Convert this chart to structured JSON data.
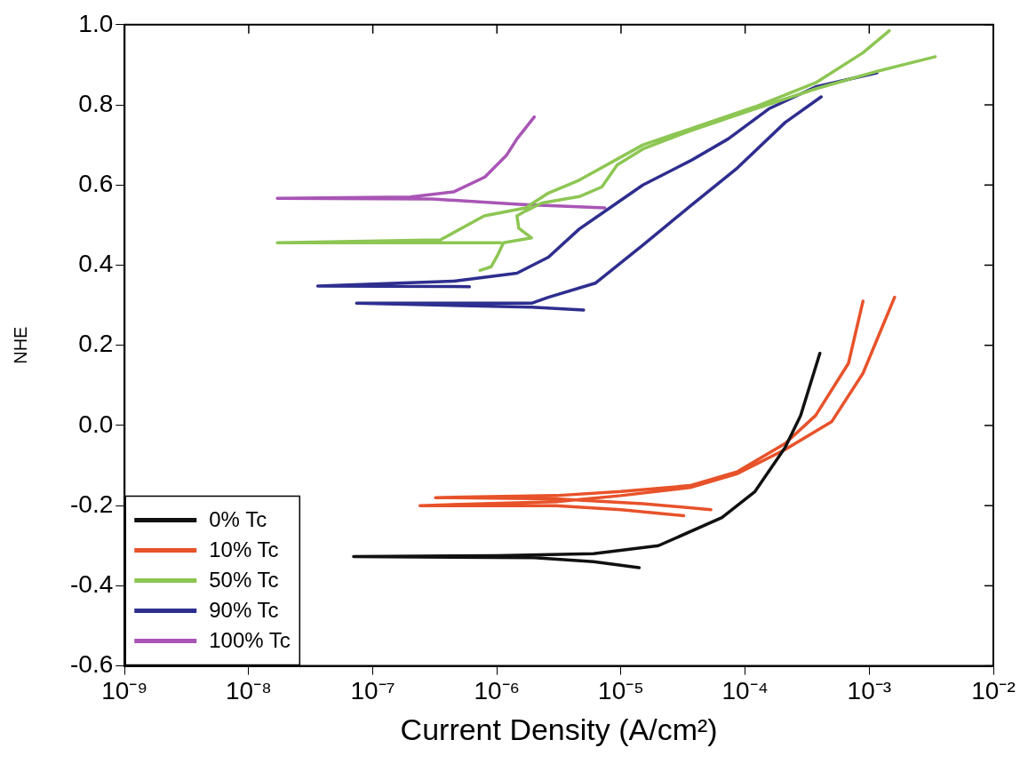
{
  "chart_data": {
    "type": "line",
    "xlabel": "Current Density (A/cm²)",
    "ylabel": "NHE",
    "log": "x",
    "xlim": [
      1e-09,
      0.01
    ],
    "ylim": [
      -0.6,
      1.0
    ],
    "xticks": [
      {
        "value": 1e-09,
        "label": "10⁻⁹"
      },
      {
        "value": 1e-08,
        "label": "10⁻⁸"
      },
      {
        "value": 1e-07,
        "label": "10⁻⁷"
      },
      {
        "value": 1e-06,
        "label": "10⁻⁶"
      },
      {
        "value": 1e-05,
        "label": "10⁻⁵"
      },
      {
        "value": 0.0001,
        "label": "10⁻⁴"
      },
      {
        "value": 0.001,
        "label": "10⁻³"
      },
      {
        "value": 0.01,
        "label": "10⁻²"
      }
    ],
    "yticks": [
      {
        "value": -0.6,
        "label": "-0.6"
      },
      {
        "value": -0.4,
        "label": "-0.4"
      },
      {
        "value": -0.2,
        "label": "-0.2"
      },
      {
        "value": 0,
        "label": "0.0"
      },
      {
        "value": 0.2,
        "label": "0.2"
      },
      {
        "value": 0.4,
        "label": "0.4"
      },
      {
        "value": 0.6,
        "label": "0.6"
      },
      {
        "value": 0.8,
        "label": "0.8"
      },
      {
        "value": 1.0,
        "label": "1.0"
      }
    ],
    "grid": false,
    "legend": "bottom left",
    "marker": "none",
    "line_style": "solid",
    "series": [
      {
        "name": "0% Tc",
        "color": "#111111",
        "x": [
          1.4e-05,
          6e-06,
          2e-06,
          7e-08,
          1e-06,
          6e-06,
          2e-05,
          6.5e-05,
          0.00012,
          0.00021,
          0.00028,
          0.0004
        ],
        "values": [
          -0.355,
          -0.34,
          -0.33,
          -0.327,
          -0.325,
          -0.32,
          -0.3,
          -0.23,
          -0.165,
          -0.055,
          0.025,
          0.18
        ]
      },
      {
        "name": "10% Tc",
        "color": "#e8522a",
        "x": [
          3.2e-05,
          1e-05,
          3e-06,
          2.4e-07,
          3e-06,
          1e-05,
          3.6e-05,
          8.7e-05,
          0.00021,
          0.0005,
          0.00089,
          0.0016,
          null,
          5.3e-05,
          1.5e-05,
          3e-06,
          3.2e-07,
          3e-06,
          1e-05,
          3.6e-05,
          8.7e-05,
          0.00021,
          0.00037,
          0.00068,
          0.00089
        ],
        "values": [
          -0.225,
          -0.21,
          -0.2,
          -0.2,
          -0.19,
          -0.175,
          -0.155,
          -0.12,
          -0.06,
          0.01,
          0.13,
          0.32,
          null,
          -0.21,
          -0.195,
          -0.183,
          -0.18,
          -0.175,
          -0.165,
          -0.15,
          -0.115,
          -0.045,
          0.025,
          0.155,
          0.31
        ]
      },
      {
        "name": "50% Tc",
        "color": "#8dc653",
        "x": [
          1.07e-06,
          1.7e-08,
          3.5e-07,
          7.9e-07,
          1.7e-06,
          2.6e-06,
          4.6e-06,
          1.5e-05,
          3.6e-05,
          0.00012,
          0.00037,
          0.00089,
          0.00145,
          null,
          7.3e-07,
          9e-07,
          1.02e-06,
          1.13e-06,
          1.9e-06,
          1.5e-06,
          1.45e-06,
          1.7e-06,
          2.3e-06,
          4.6e-06,
          7e-06,
          9.3e-06,
          1.5e-05,
          3.6e-05,
          0.00012,
          0.00037,
          0.0012,
          0.0034
        ],
        "values": [
          0.456,
          0.456,
          0.463,
          0.523,
          0.543,
          0.58,
          0.612,
          0.7,
          0.74,
          0.795,
          0.855,
          0.93,
          0.985,
          null,
          0.387,
          0.396,
          0.427,
          0.456,
          0.468,
          0.492,
          0.523,
          0.535,
          0.555,
          0.571,
          0.595,
          0.65,
          0.69,
          0.735,
          0.79,
          0.84,
          0.885,
          0.92
        ]
      },
      {
        "name": "90% Tc",
        "color": "#2e2e8f",
        "x": [
          6e-07,
          4.5e-07,
          3.6e-08,
          4.5e-07,
          1.45e-06,
          2.6e-06,
          4.6e-06,
          1.5e-05,
          3.6e-05,
          7.3e-05,
          0.000155,
          0.00037,
          0.00115,
          null,
          5e-06,
          1.9e-06,
          7.4e-08,
          1.9e-06,
          2.6e-06,
          6.2e-06,
          1.5e-05,
          3.6e-05,
          8.7e-05,
          0.00021,
          0.00041
        ],
        "values": [
          0.346,
          0.347,
          0.348,
          0.36,
          0.38,
          0.42,
          0.49,
          0.6,
          0.66,
          0.715,
          0.79,
          0.845,
          0.88,
          null,
          0.288,
          0.295,
          0.305,
          0.305,
          0.32,
          0.355,
          0.45,
          0.547,
          0.643,
          0.756,
          0.82
        ]
      },
      {
        "name": "100% Tc",
        "color": "#a855b5",
        "x": [
          7.4e-06,
          1.5e-06,
          3e-07,
          1.7e-08,
          2e-07,
          4.5e-07,
          8e-07,
          1.2e-06,
          1.45e-06,
          2e-06
        ],
        "values": [
          0.543,
          0.552,
          0.565,
          0.567,
          0.57,
          0.583,
          0.62,
          0.675,
          0.715,
          0.77
        ]
      }
    ]
  }
}
